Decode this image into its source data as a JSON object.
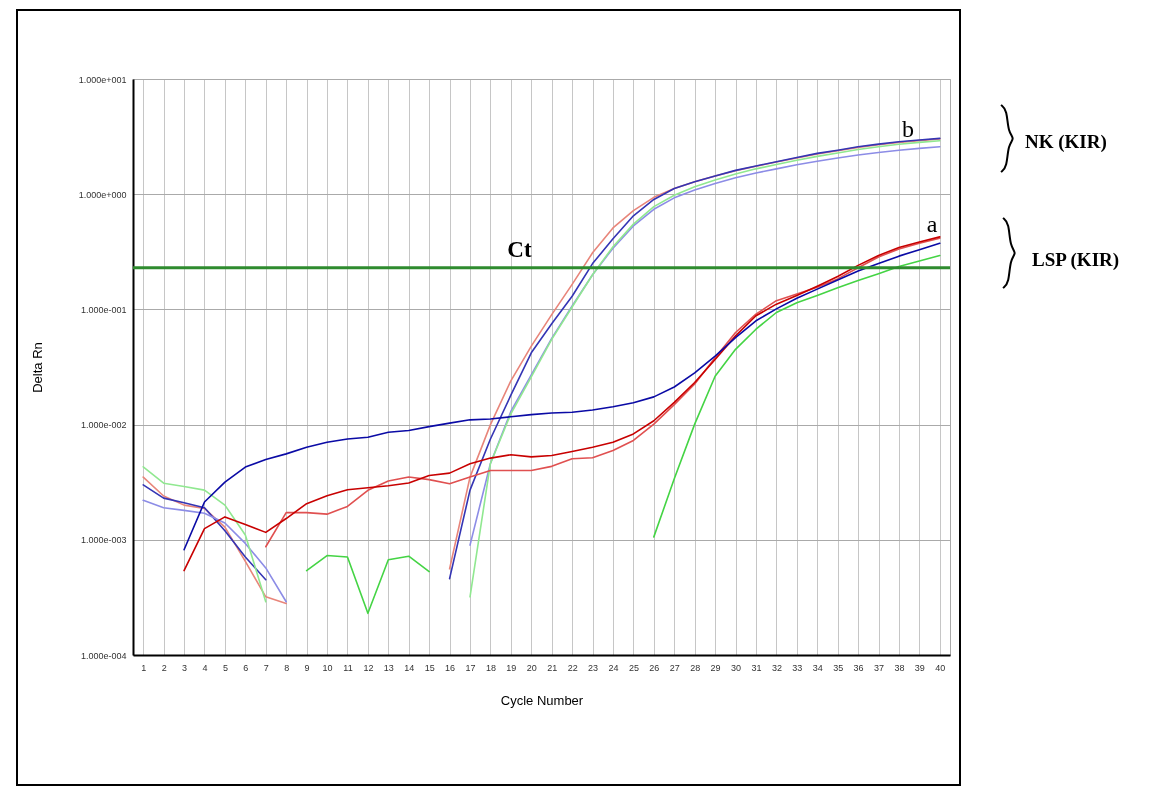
{
  "chart_data": {
    "type": "line",
    "xlabel": "Cycle Number",
    "ylabel": "Delta Rn",
    "log": true,
    "grid": true,
    "x": [
      1,
      2,
      3,
      4,
      5,
      6,
      7,
      8,
      9,
      10,
      11,
      12,
      13,
      14,
      15,
      16,
      17,
      18,
      19,
      20,
      21,
      22,
      23,
      24,
      25,
      26,
      27,
      28,
      29,
      30,
      31,
      32,
      33,
      34,
      35,
      36,
      37,
      38,
      39,
      40
    ],
    "xlim": [
      0.5,
      40.5
    ],
    "xticks": [
      1,
      2,
      3,
      4,
      5,
      6,
      7,
      8,
      9,
      10,
      11,
      12,
      13,
      14,
      15,
      16,
      17,
      18,
      19,
      20,
      21,
      22,
      23,
      24,
      25,
      26,
      27,
      28,
      29,
      30,
      31,
      32,
      33,
      34,
      35,
      36,
      37,
      38,
      39,
      40
    ],
    "ylim": [
      0.0001,
      10
    ],
    "yticks": [
      {
        "value": 0.0001,
        "label": "1.000e-004"
      },
      {
        "value": 0.001,
        "label": "1.000e-003"
      },
      {
        "value": 0.01,
        "label": "1.000e-002"
      },
      {
        "value": 0.1,
        "label": "1.000e-001"
      },
      {
        "value": 1,
        "label": "1.000e+000"
      },
      {
        "value": 10,
        "label": "1.000e+001"
      }
    ],
    "ref_lines": [
      {
        "axis": "y",
        "value": 0.23,
        "label": "Ct",
        "color": "#2e8b2e"
      }
    ],
    "annotations": [
      "a",
      "b",
      "NK (KIR)",
      "LSP (KIR)"
    ],
    "series": [
      {
        "color": "#e8857a",
        "values": [
          0.0035,
          0.0024,
          0.002,
          0.00187,
          0.00129,
          0.00065,
          0.00032,
          0.00028,
          null,
          null,
          null,
          null,
          null,
          null,
          null,
          0.00056,
          0.0035,
          0.01,
          0.024,
          0.048,
          0.09,
          0.165,
          0.31,
          0.51,
          0.72,
          0.94,
          1.12,
          1.28,
          1.44,
          1.6,
          1.75,
          1.9,
          2.06,
          2.23,
          2.38,
          2.55,
          2.69,
          2.82,
          2.92,
          3.02
        ]
      },
      {
        "color": "#3434b4",
        "values": [
          0.003,
          0.0023,
          0.0021,
          0.0019,
          0.0012,
          0.00071,
          0.00045,
          null,
          null,
          null,
          null,
          null,
          null,
          null,
          null,
          0.00046,
          0.0027,
          0.0075,
          0.018,
          0.042,
          0.075,
          0.13,
          0.25,
          0.41,
          0.65,
          0.9,
          1.12,
          1.28,
          1.44,
          1.61,
          1.76,
          1.91,
          2.08,
          2.26,
          2.41,
          2.58,
          2.72,
          2.85,
          2.95,
          3.05
        ]
      },
      {
        "color": "#8c8ce6",
        "values": [
          0.0022,
          0.0019,
          0.0018,
          0.0017,
          0.0014,
          0.00093,
          0.00057,
          0.00029,
          null,
          null,
          null,
          null,
          null,
          null,
          null,
          null,
          0.0009,
          0.0046,
          0.013,
          0.027,
          0.056,
          0.107,
          0.2,
          0.34,
          0.53,
          0.74,
          0.93,
          1.09,
          1.24,
          1.39,
          1.53,
          1.66,
          1.8,
          1.93,
          2.06,
          2.19,
          2.3,
          2.41,
          2.5,
          2.58
        ]
      },
      {
        "color": "#90e890",
        "values": [
          0.0043,
          0.0031,
          0.0029,
          0.0027,
          0.002,
          0.0011,
          0.00029,
          null,
          null,
          null,
          null,
          null,
          null,
          null,
          null,
          null,
          0.00032,
          0.0046,
          0.0124,
          0.026,
          0.055,
          0.105,
          0.2,
          0.35,
          0.55,
          0.78,
          0.98,
          1.16,
          1.33,
          1.5,
          1.66,
          1.81,
          1.97,
          2.13,
          2.28,
          2.44,
          2.58,
          2.71,
          2.82,
          2.91
        ]
      },
      {
        "color": "#e05050",
        "values": [
          null,
          null,
          null,
          null,
          null,
          null,
          0.00087,
          0.00172,
          0.00172,
          0.00167,
          0.00195,
          0.00269,
          0.00324,
          0.00351,
          0.00333,
          0.00307,
          0.00351,
          0.004,
          0.004,
          0.004,
          0.00434,
          0.00505,
          0.00515,
          0.00596,
          0.00728,
          0.0101,
          0.0149,
          0.0225,
          0.038,
          0.063,
          0.091,
          0.119,
          0.136,
          0.156,
          0.184,
          0.23,
          0.285,
          0.335,
          0.375,
          0.415
        ]
      },
      {
        "color": "#44d444",
        "values": [
          null,
          null,
          null,
          null,
          null,
          null,
          null,
          null,
          0.00054,
          0.00073,
          0.00071,
          0.00023,
          0.00067,
          0.00072,
          0.00053,
          null,
          null,
          null,
          null,
          null,
          null,
          null,
          null,
          null,
          null,
          0.00106,
          0.00339,
          0.0101,
          0.0263,
          0.045,
          0.0673,
          0.094,
          0.114,
          0.132,
          0.154,
          0.178,
          0.204,
          0.236,
          0.263,
          0.294
        ]
      },
      {
        "color": "#c80000",
        "values": [
          null,
          null,
          0.00054,
          0.00125,
          0.00158,
          0.00136,
          0.00116,
          0.00153,
          0.00206,
          0.00241,
          0.00272,
          0.00283,
          0.00295,
          0.00311,
          0.00362,
          0.00379,
          0.00457,
          0.00512,
          0.00547,
          0.00525,
          0.0054,
          0.00585,
          0.00637,
          0.00703,
          0.0083,
          0.0108,
          0.0156,
          0.0232,
          0.0368,
          0.0589,
          0.088,
          0.111,
          0.132,
          0.159,
          0.193,
          0.241,
          0.294,
          0.344,
          0.385,
          0.426
        ]
      },
      {
        "color": "#0a0aa5",
        "values": [
          null,
          null,
          0.00082,
          0.00213,
          0.00317,
          0.00428,
          0.00498,
          0.00557,
          0.00637,
          0.00703,
          0.00751,
          0.00777,
          0.00859,
          0.00888,
          0.00961,
          0.0103,
          0.011,
          0.0112,
          0.0117,
          0.0122,
          0.0126,
          0.0128,
          0.0134,
          0.0143,
          0.0155,
          0.0174,
          0.0212,
          0.0281,
          0.0393,
          0.0569,
          0.0796,
          0.101,
          0.125,
          0.15,
          0.18,
          0.215,
          0.25,
          0.29,
          0.33,
          0.375
        ]
      }
    ]
  }
}
